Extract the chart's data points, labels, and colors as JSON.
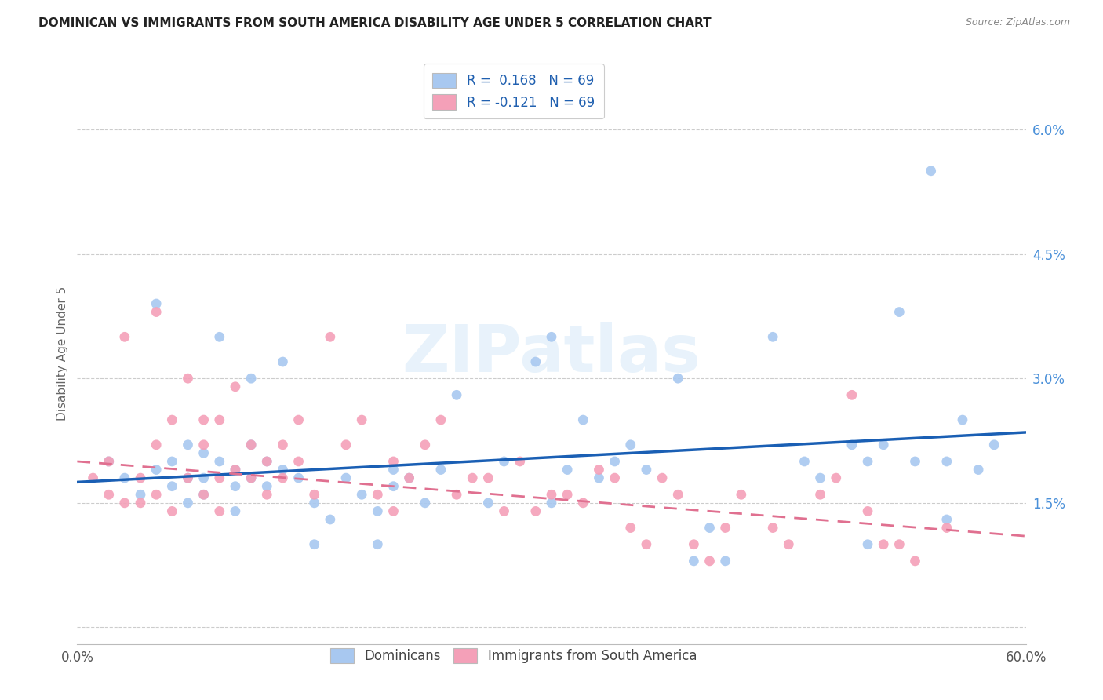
{
  "title": "DOMINICAN VS IMMIGRANTS FROM SOUTH AMERICA DISABILITY AGE UNDER 5 CORRELATION CHART",
  "source": "Source: ZipAtlas.com",
  "ylabel": "Disability Age Under 5",
  "yticks": [
    0.0,
    0.015,
    0.03,
    0.045,
    0.06
  ],
  "ytick_labels": [
    "",
    "1.5%",
    "3.0%",
    "4.5%",
    "6.0%"
  ],
  "xlim": [
    0.0,
    0.6
  ],
  "ylim": [
    -0.002,
    0.068
  ],
  "blue_R": 0.168,
  "blue_N": 69,
  "pink_R": -0.121,
  "pink_N": 69,
  "blue_color": "#a8c8f0",
  "pink_color": "#f4a0b8",
  "blue_line_color": "#1a5fb4",
  "pink_line_color": "#e07090",
  "watermark": "ZIPatlas",
  "blue_x": [
    0.02,
    0.03,
    0.04,
    0.05,
    0.05,
    0.06,
    0.06,
    0.07,
    0.07,
    0.07,
    0.08,
    0.08,
    0.08,
    0.09,
    0.09,
    0.1,
    0.1,
    0.1,
    0.11,
    0.11,
    0.11,
    0.12,
    0.12,
    0.13,
    0.13,
    0.14,
    0.15,
    0.15,
    0.16,
    0.17,
    0.18,
    0.19,
    0.19,
    0.2,
    0.2,
    0.21,
    0.22,
    0.23,
    0.24,
    0.26,
    0.27,
    0.29,
    0.3,
    0.3,
    0.31,
    0.32,
    0.33,
    0.34,
    0.35,
    0.36,
    0.38,
    0.39,
    0.4,
    0.41,
    0.44,
    0.46,
    0.47,
    0.49,
    0.5,
    0.5,
    0.51,
    0.52,
    0.53,
    0.54,
    0.55,
    0.55,
    0.56,
    0.57,
    0.58
  ],
  "blue_y": [
    0.02,
    0.018,
    0.016,
    0.019,
    0.039,
    0.017,
    0.02,
    0.015,
    0.018,
    0.022,
    0.016,
    0.018,
    0.021,
    0.02,
    0.035,
    0.019,
    0.017,
    0.014,
    0.018,
    0.022,
    0.03,
    0.017,
    0.02,
    0.019,
    0.032,
    0.018,
    0.015,
    0.01,
    0.013,
    0.018,
    0.016,
    0.014,
    0.01,
    0.017,
    0.019,
    0.018,
    0.015,
    0.019,
    0.028,
    0.015,
    0.02,
    0.032,
    0.015,
    0.035,
    0.019,
    0.025,
    0.018,
    0.02,
    0.022,
    0.019,
    0.03,
    0.008,
    0.012,
    0.008,
    0.035,
    0.02,
    0.018,
    0.022,
    0.02,
    0.01,
    0.022,
    0.038,
    0.02,
    0.055,
    0.02,
    0.013,
    0.025,
    0.019,
    0.022
  ],
  "pink_x": [
    0.01,
    0.02,
    0.02,
    0.03,
    0.03,
    0.04,
    0.04,
    0.05,
    0.05,
    0.05,
    0.06,
    0.06,
    0.07,
    0.07,
    0.08,
    0.08,
    0.08,
    0.09,
    0.09,
    0.09,
    0.1,
    0.1,
    0.11,
    0.11,
    0.12,
    0.12,
    0.13,
    0.13,
    0.14,
    0.14,
    0.15,
    0.16,
    0.17,
    0.18,
    0.19,
    0.2,
    0.2,
    0.21,
    0.22,
    0.23,
    0.24,
    0.25,
    0.26,
    0.27,
    0.28,
    0.29,
    0.3,
    0.31,
    0.32,
    0.33,
    0.34,
    0.35,
    0.36,
    0.37,
    0.38,
    0.39,
    0.4,
    0.41,
    0.42,
    0.44,
    0.45,
    0.47,
    0.48,
    0.49,
    0.5,
    0.51,
    0.52,
    0.53,
    0.55
  ],
  "pink_y": [
    0.018,
    0.02,
    0.016,
    0.015,
    0.035,
    0.018,
    0.015,
    0.016,
    0.022,
    0.038,
    0.014,
    0.025,
    0.018,
    0.03,
    0.016,
    0.022,
    0.025,
    0.014,
    0.018,
    0.025,
    0.019,
    0.029,
    0.018,
    0.022,
    0.02,
    0.016,
    0.018,
    0.022,
    0.02,
    0.025,
    0.016,
    0.035,
    0.022,
    0.025,
    0.016,
    0.014,
    0.02,
    0.018,
    0.022,
    0.025,
    0.016,
    0.018,
    0.018,
    0.014,
    0.02,
    0.014,
    0.016,
    0.016,
    0.015,
    0.019,
    0.018,
    0.012,
    0.01,
    0.018,
    0.016,
    0.01,
    0.008,
    0.012,
    0.016,
    0.012,
    0.01,
    0.016,
    0.018,
    0.028,
    0.014,
    0.01,
    0.01,
    0.008,
    0.012
  ],
  "blue_trendline_x": [
    0.0,
    0.6
  ],
  "blue_trendline_y": [
    0.0175,
    0.0235
  ],
  "pink_trendline_x": [
    0.0,
    0.6
  ],
  "pink_trendline_y": [
    0.02,
    0.011
  ]
}
